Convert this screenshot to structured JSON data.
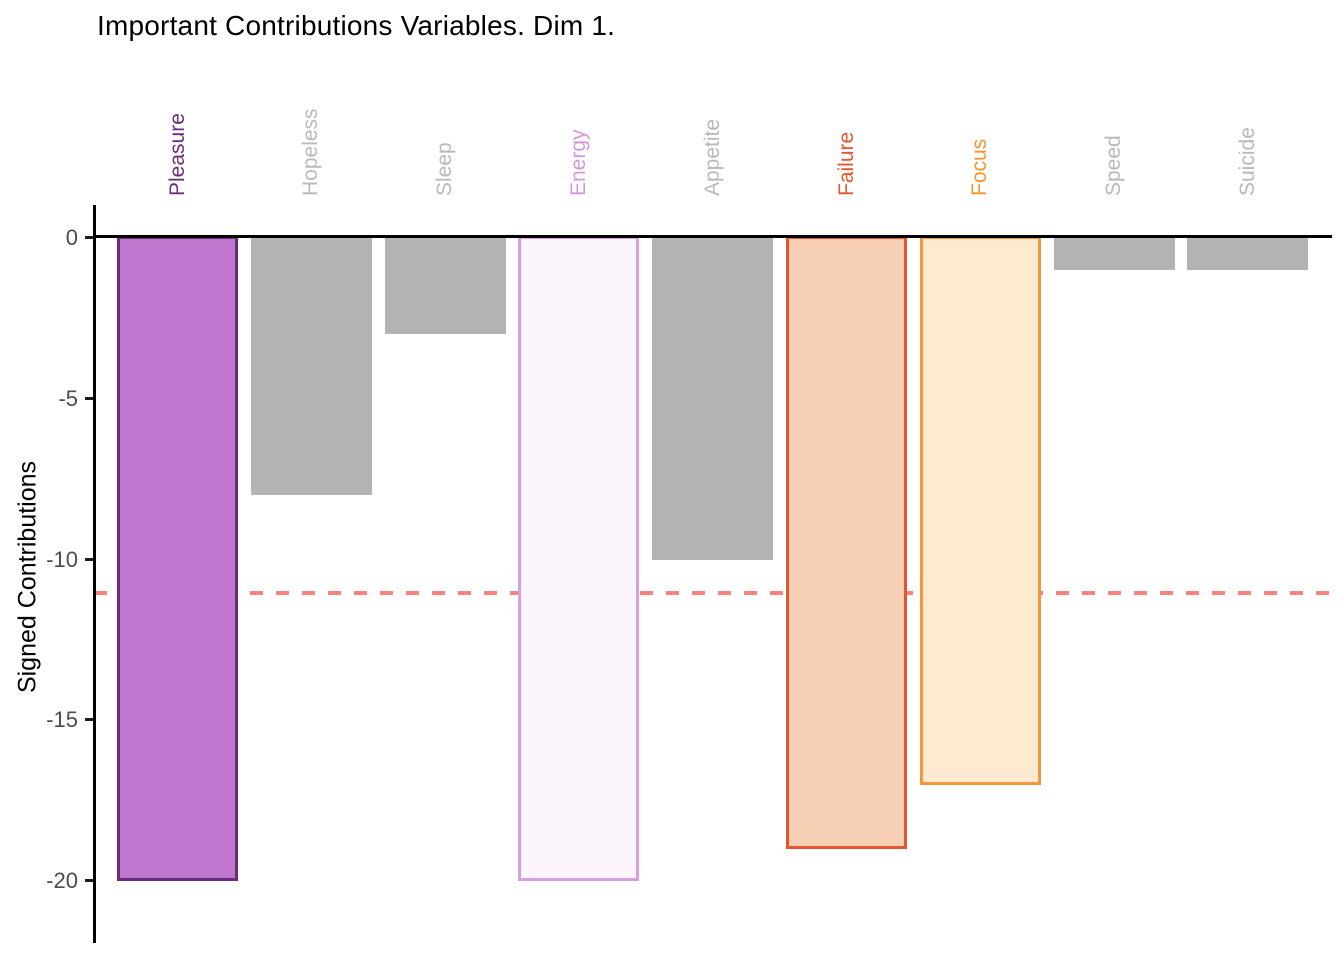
{
  "chart_data": {
    "type": "bar",
    "title": "Important Contributions Variables. Dim 1.",
    "xlabel": "",
    "ylabel": "Signed Contributions",
    "categories": [
      "Pleasure",
      "Hopeless",
      "Sleep",
      "Energy",
      "Appetite",
      "Failure",
      "Focus",
      "Speed",
      "Suicide"
    ],
    "values": [
      -20,
      -8,
      -3,
      -20,
      -10,
      -19,
      -17,
      -1,
      -1
    ],
    "yticks": [
      0,
      -5,
      -10,
      -15,
      -20
    ],
    "ylim": [
      1,
      -22
    ],
    "grid": false,
    "legend": false,
    "background": "#ffffff",
    "axis_color": "#000000",
    "tick_label_color": "#4d4d4d",
    "threshold_line": {
      "value": -11.1,
      "style": "dashed",
      "color": "#fb8181"
    },
    "bar_styles": [
      {
        "fill": "#bf77cf",
        "border": "#6a2d7c",
        "label_color": "#6a2d7c"
      },
      {
        "fill": "#b3b3b3",
        "border": null,
        "label_color": "#b9b9b9"
      },
      {
        "fill": "#b3b3b3",
        "border": null,
        "label_color": "#b9b9b9"
      },
      {
        "fill": "#fdf5fc",
        "border": "#d79fe2",
        "label_color": "#d893e2"
      },
      {
        "fill": "#b3b3b3",
        "border": null,
        "label_color": "#b9b9b9"
      },
      {
        "fill": "#f6cfb5",
        "border": "#e4572e",
        "label_color": "#e4572e"
      },
      {
        "fill": "#fdead0",
        "border": "#f5953c",
        "label_color": "#f59432"
      },
      {
        "fill": "#b3b3b3",
        "border": null,
        "label_color": "#b9b9b9"
      },
      {
        "fill": "#b3b3b3",
        "border": null,
        "label_color": "#b9b9b9"
      }
    ]
  }
}
